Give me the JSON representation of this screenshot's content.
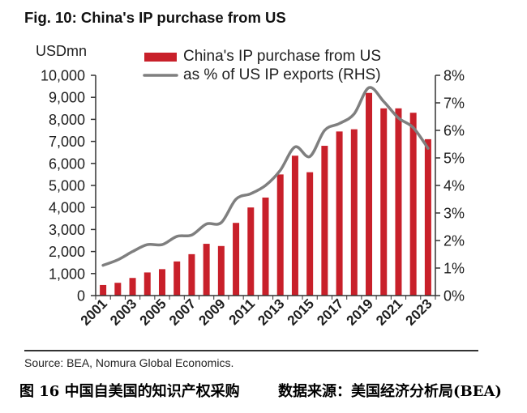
{
  "chart_data": {
    "type": "bar",
    "title": "Fig. 10: China's IP purchase from US",
    "x": [
      2001,
      2002,
      2003,
      2004,
      2005,
      2006,
      2007,
      2008,
      2009,
      2010,
      2011,
      2012,
      2013,
      2014,
      2015,
      2016,
      2017,
      2018,
      2019,
      2020,
      2021,
      2022,
      2023
    ],
    "x_tick_labels": [
      "2001",
      "2003",
      "2005",
      "2007",
      "2009",
      "2011",
      "2013",
      "2015",
      "2017",
      "2019",
      "2021",
      "2023"
    ],
    "series": [
      {
        "name": "China's IP purchase from US",
        "type": "bar",
        "axis": "left",
        "values": [
          480,
          580,
          800,
          1050,
          1200,
          1550,
          1880,
          2350,
          2250,
          3300,
          4000,
          4450,
          5500,
          6350,
          5600,
          6800,
          7450,
          7550,
          9200,
          8500,
          8500,
          8300,
          7100
        ]
      },
      {
        "name": "as % of US IP exports (RHS)",
        "type": "line",
        "axis": "right",
        "values": [
          1.1,
          1.3,
          1.6,
          1.85,
          1.85,
          2.15,
          2.2,
          2.6,
          2.65,
          3.5,
          3.7,
          4.0,
          4.55,
          5.4,
          5.05,
          6.0,
          6.25,
          6.6,
          7.55,
          7.05,
          6.45,
          6.1,
          5.35
        ]
      }
    ],
    "y_left": {
      "label": "USDmn",
      "range": [
        0,
        10000
      ],
      "ticks": [
        "0",
        "1,000",
        "2,000",
        "3,000",
        "4,000",
        "5,000",
        "6,000",
        "7,000",
        "8,000",
        "9,000",
        "10,000"
      ]
    },
    "y_right": {
      "range": [
        0,
        8
      ],
      "ticks": [
        "0%",
        "1%",
        "2%",
        "3%",
        "4%",
        "5%",
        "6%",
        "7%",
        "8%"
      ]
    },
    "legend_position": "top",
    "grid": false
  },
  "source": "Source: BEA, Nomura Global Economics.",
  "caption": {
    "figure": "图 16 中国自美国的知识产权采购",
    "data_source": "数据来源：美国经济分析局(BEA)"
  },
  "colors": {
    "bar": "#c8202a",
    "line": "#7f7f7f",
    "axis": "#333333"
  }
}
